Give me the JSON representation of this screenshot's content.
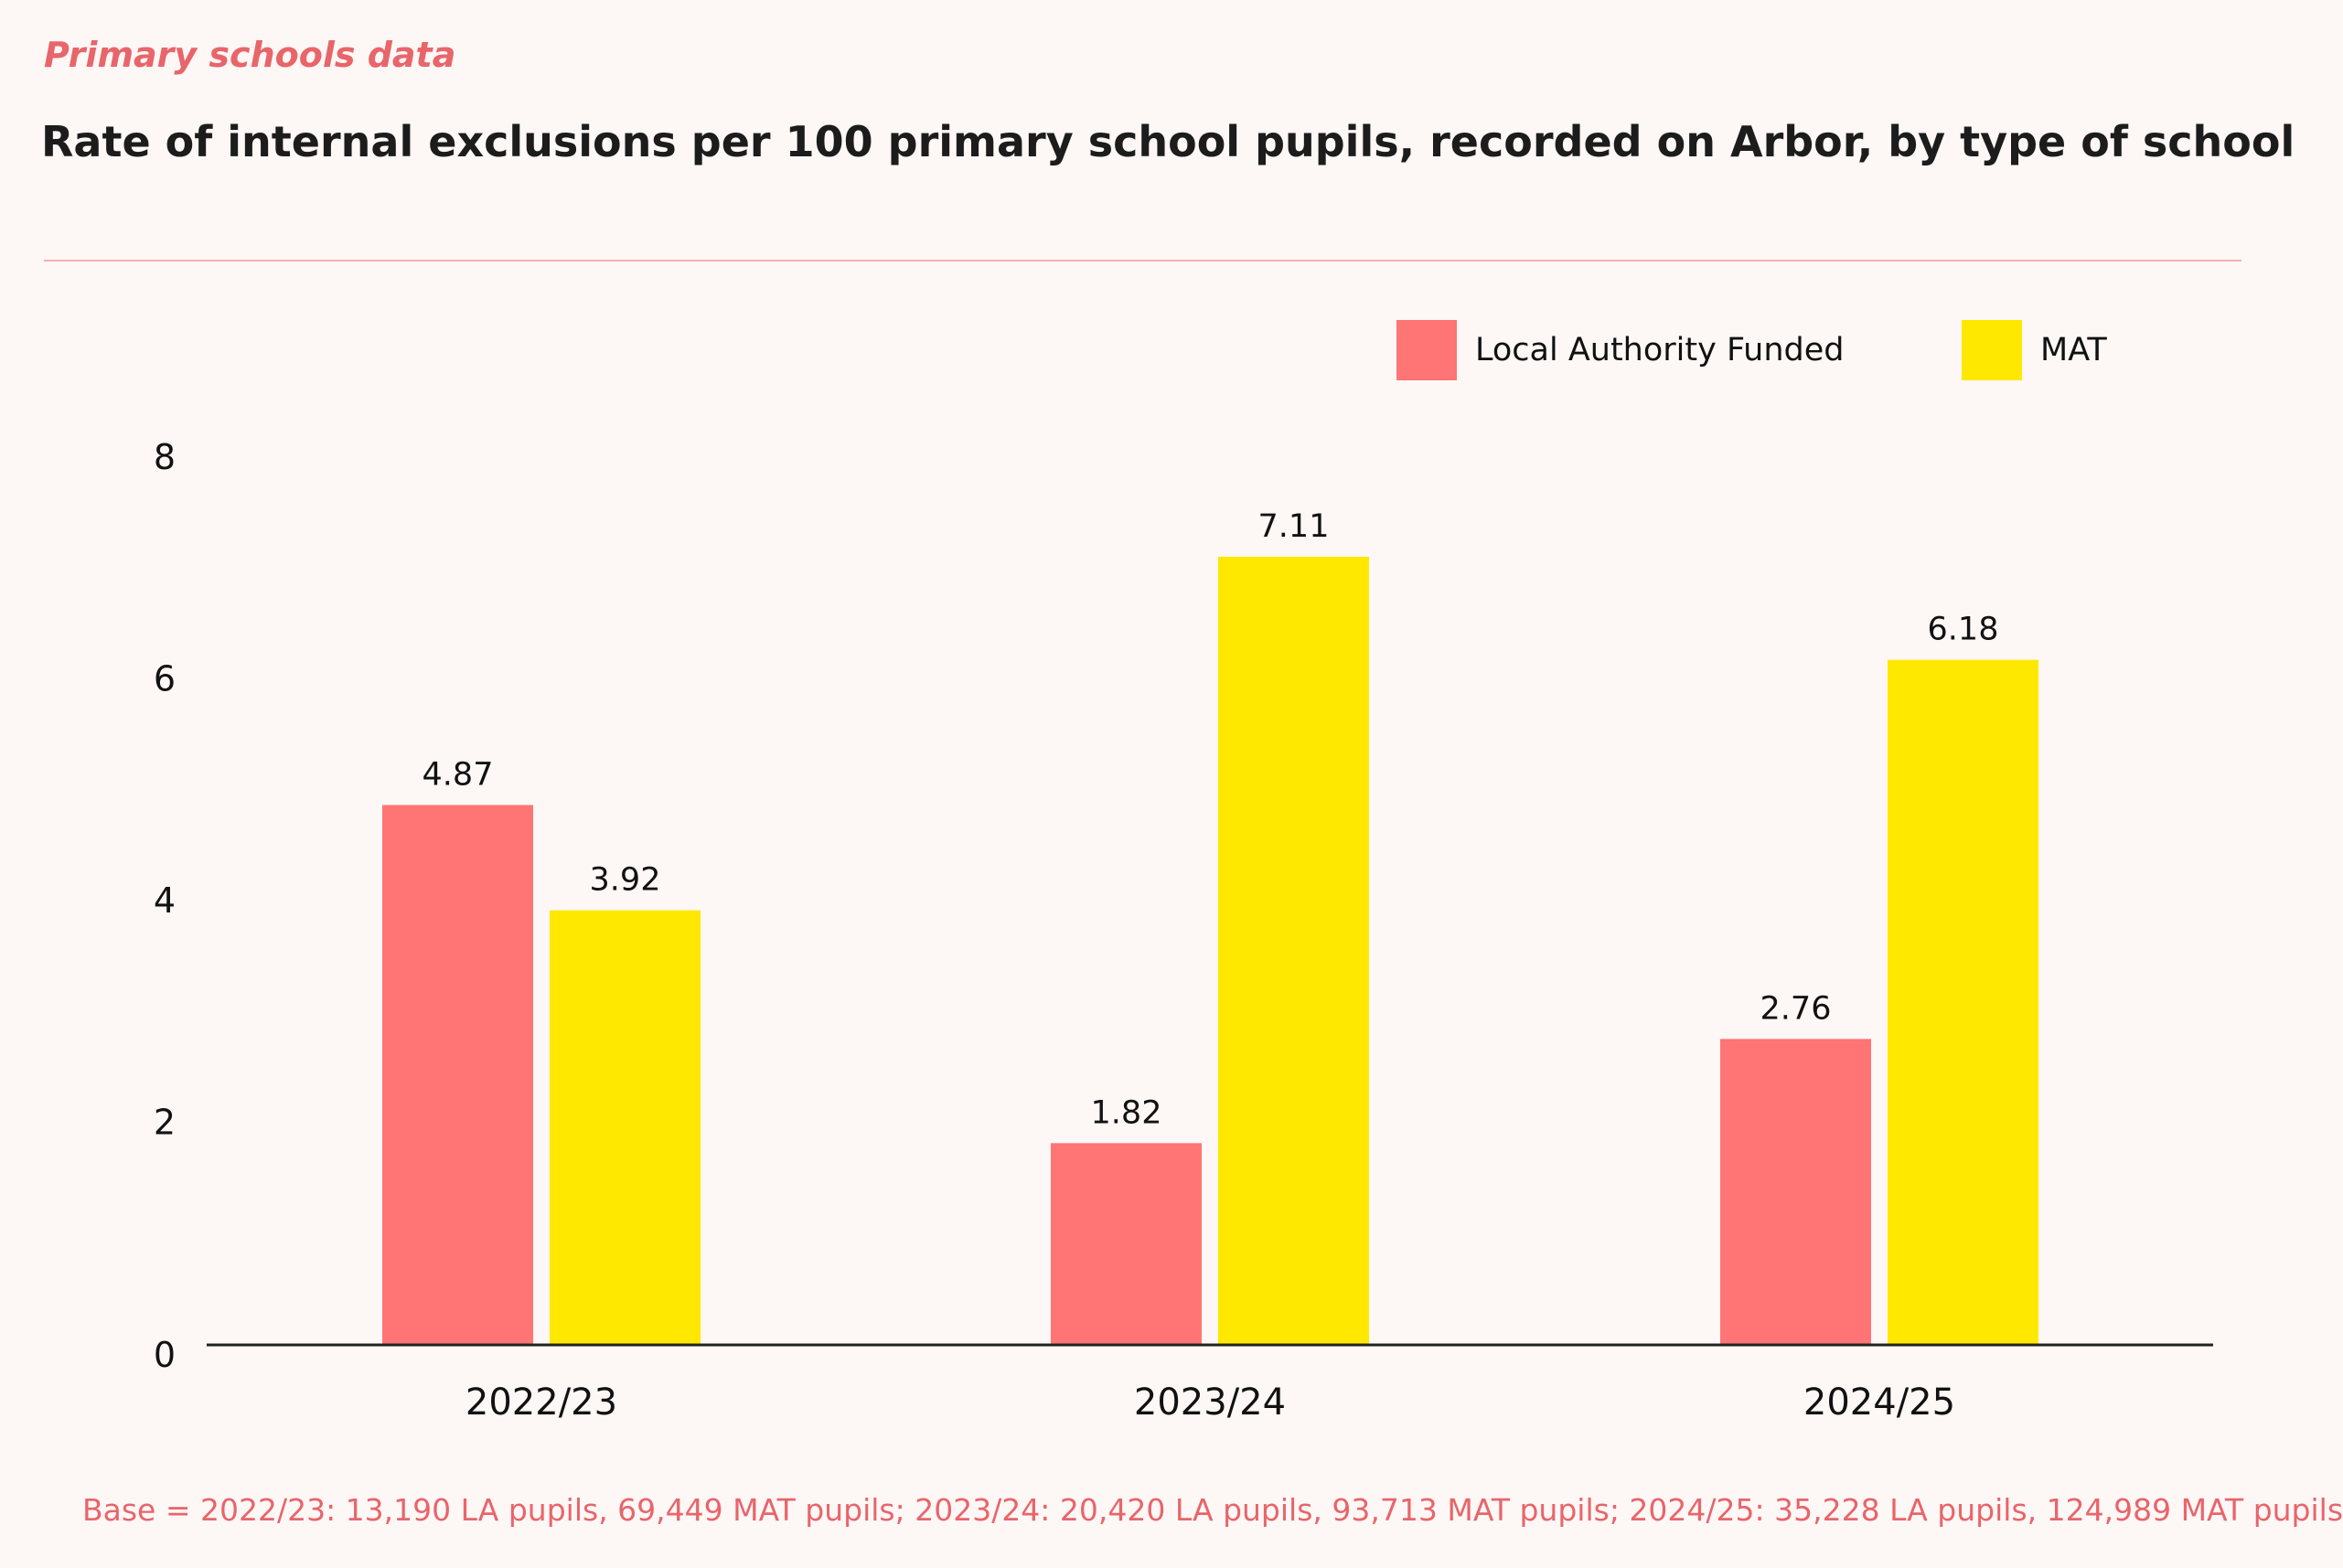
{
  "header": {
    "kicker": "Primary schools data",
    "title": "Rate of internal exclusions per 100 primary school pupils, recorded on Arbor, by type of school"
  },
  "colors": {
    "local_authority": "#ff7474",
    "mat": "#ffe800",
    "accent": "#e8656a",
    "background": "#fdf7f6"
  },
  "legend": {
    "items": [
      {
        "label": "Local Authority Funded",
        "color": "#ff7474"
      },
      {
        "label": "MAT",
        "color": "#ffe800"
      }
    ]
  },
  "chart_data": {
    "type": "bar",
    "title": "Rate of internal exclusions per 100 primary school pupils, recorded on Arbor, by type of school",
    "xlabel": "",
    "ylabel": "",
    "categories": [
      "2022/23",
      "2023/24",
      "2024/25"
    ],
    "series": [
      {
        "name": "Local Authority Funded",
        "values": [
          4.87,
          1.82,
          2.76
        ],
        "labels": [
          "4.87",
          "1.82",
          "2.76"
        ]
      },
      {
        "name": "MAT",
        "values": [
          3.92,
          7.11,
          6.18
        ],
        "labels": [
          "3.92",
          "7.11",
          "6.18"
        ]
      }
    ],
    "ylim": [
      0,
      8
    ],
    "yticks": [
      "0",
      "2",
      "4",
      "6",
      "8"
    ],
    "grid": false,
    "legend_position": "top-right"
  },
  "footnote": "Base = 2022/23: 13,190 LA pupils, 69,449 MAT pupils; 2023/24: 20,420 LA pupils, 93,713 MAT pupils; 2024/25: 35,228 LA pupils, 124,989 MAT pupils"
}
